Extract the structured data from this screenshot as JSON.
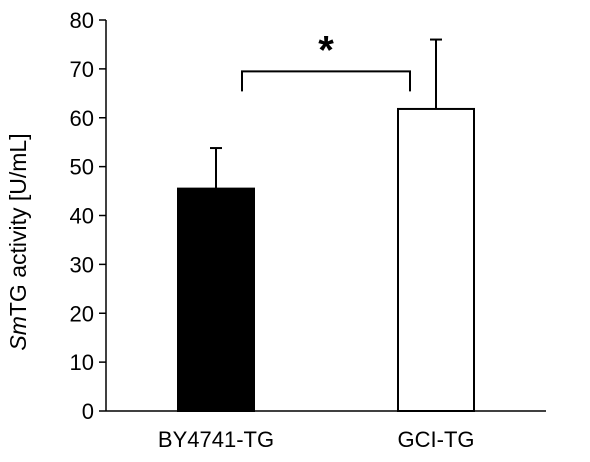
{
  "chart_data": {
    "type": "bar",
    "categories": [
      "BY4741-TG",
      "GCI-TG"
    ],
    "series": [
      {
        "values": [
          45.5,
          61.8
        ],
        "errors": [
          8.3,
          14.2
        ]
      }
    ],
    "bar_fills": [
      "#000000",
      "#ffffff"
    ],
    "bar_stroke": "#000000",
    "ylabel": {
      "italic": "Sm",
      "rest": "TG activity [U/mL]"
    },
    "xlabel": "",
    "ylim": [
      0,
      80
    ],
    "yticks": [
      0,
      10,
      20,
      30,
      40,
      50,
      60,
      70,
      80
    ],
    "grid": false,
    "legend": "none",
    "annotations": [
      {
        "type": "significance-bracket",
        "between": [
          "BY4741-TG",
          "GCI-TG"
        ],
        "label": "*"
      }
    ]
  }
}
